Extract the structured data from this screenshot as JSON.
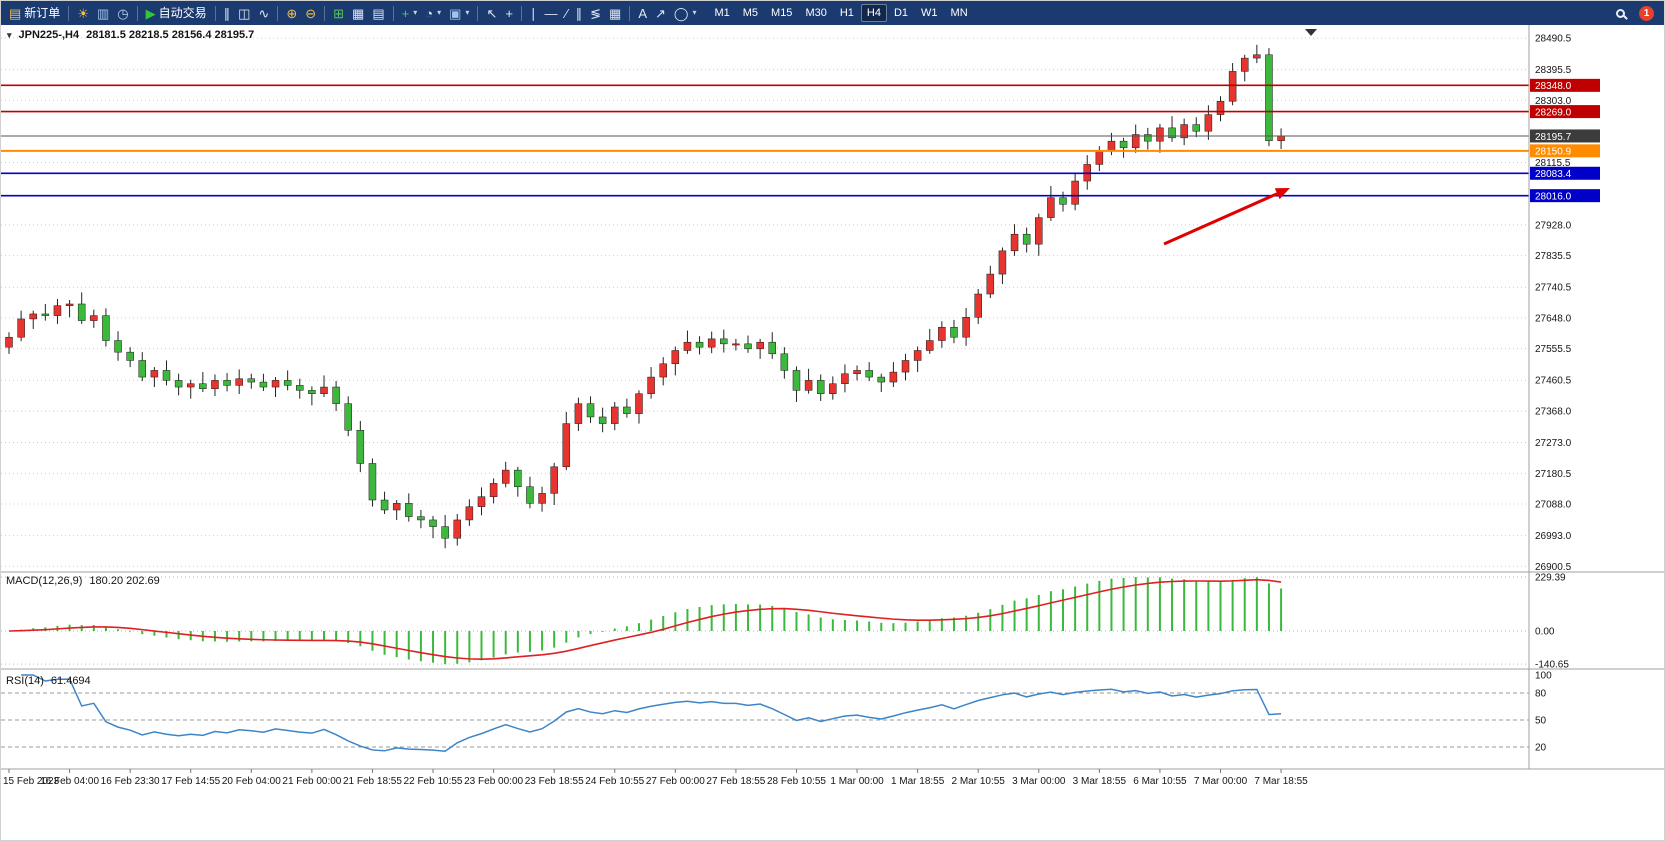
{
  "toolbar": {
    "background": "#1b3a70",
    "notification_count": "1",
    "timeframes": [
      "M1",
      "M5",
      "M15",
      "M30",
      "H1",
      "H4",
      "D1",
      "W1",
      "MN"
    ],
    "active_timeframe": "H4",
    "icon_groups": [
      {
        "items": [
          {
            "name": "new-order-button",
            "label": "新订单"
          }
        ]
      },
      {
        "items": [
          {
            "name": "indicators-icon"
          },
          {
            "name": "market-watch-icon"
          },
          {
            "name": "refresh-icon"
          }
        ]
      },
      {
        "items": [
          {
            "name": "auto-trading-button",
            "label": "自动交易"
          }
        ]
      },
      {
        "items": [
          {
            "name": "bar-chart-icon"
          },
          {
            "name": "candlestick-chart-icon"
          },
          {
            "name": "line-chart-icon"
          }
        ]
      },
      {
        "items": [
          {
            "name": "zoom-in-icon"
          },
          {
            "name": "zoom-out-icon"
          }
        ]
      },
      {
        "items": [
          {
            "name": "tile-windows-icon"
          },
          {
            "name": "cascade-windows-icon"
          },
          {
            "name": "arrange-windows-icon"
          }
        ]
      },
      {
        "items": [
          {
            "name": "new-chart-icon",
            "caret": true
          },
          {
            "name": "period-icon",
            "caret": true
          },
          {
            "name": "template-icon",
            "caret": true
          }
        ]
      },
      {
        "items": [
          {
            "name": "cursor-icon"
          },
          {
            "name": "crosshair-icon"
          }
        ]
      },
      {
        "items": [
          {
            "name": "vertical-line-icon"
          },
          {
            "name": "horizontal-line-icon"
          },
          {
            "name": "trendline-icon"
          },
          {
            "name": "channel-icon"
          },
          {
            "name": "fibonacci-icon"
          },
          {
            "name": "grid-icon"
          }
        ]
      },
      {
        "items": [
          {
            "name": "text-icon"
          },
          {
            "name": "arrow-marker-icon"
          },
          {
            "name": "shapes-icon",
            "caret": true
          }
        ]
      }
    ]
  },
  "chart": {
    "symbol_label": "JPN225-,H4",
    "ohlc_label": "28181.5 28218.5 28156.4 28195.7"
  },
  "chart_data": {
    "type": "candlestick",
    "symbol": "JPN225-",
    "timeframe": "H4",
    "ohlc_current": {
      "open": 28181.5,
      "high": 28218.5,
      "low": 28156.4,
      "close": 28195.7
    },
    "colors": {
      "bull": "#e8342e",
      "bear": "#3cb93c",
      "wick": "#222222",
      "grid": "#cccccc"
    },
    "price_axis": {
      "min": 26900.5,
      "max": 28490.5,
      "ticks": [
        "28490.5",
        "28395.5",
        "28303.0",
        "28115.5",
        "27928.0",
        "27835.5",
        "27740.5",
        "27648.0",
        "27555.5",
        "27460.5",
        "27368.0",
        "27273.0",
        "27180.5",
        "27088.0",
        "26993.0",
        "26900.5"
      ]
    },
    "levels": [
      {
        "name": "resistance-line-upper",
        "price": 28348.0,
        "label": "28348.0",
        "color": "#c00000",
        "badge": "#c00000",
        "width": 1.6
      },
      {
        "name": "resistance-line-lower",
        "price": 28269.0,
        "label": "28269.0",
        "color": "#c00000",
        "badge": "#c00000",
        "width": 1.6
      },
      {
        "name": "current-price-line",
        "price": 28195.7,
        "label": "28195.7",
        "color": "#555555",
        "badge": "#3c3c3c",
        "width": 1
      },
      {
        "name": "support-line-orange",
        "price": 28150.9,
        "label": "28150.9",
        "color": "#ff8c00",
        "badge": "#ff8c00",
        "width": 2
      },
      {
        "name": "support-line-blue-upper",
        "price": 28083.4,
        "label": "28083.4",
        "color": "#0000c8",
        "badge": "#0000c8",
        "width": 1.6
      },
      {
        "name": "support-line-blue-lower",
        "price": 28016.0,
        "label": "28016.0",
        "color": "#0000c8",
        "badge": "#0000c8",
        "width": 1.6
      }
    ],
    "annotation_arrow": {
      "from": [
        1163,
        243
      ],
      "to": [
        1289,
        187
      ],
      "color": "#e00000"
    },
    "time_labels": [
      "15 Feb 2023",
      "16 Feb 04:00",
      "16 Feb 23:30",
      "17 Feb 14:55",
      "20 Feb 04:00",
      "21 Feb 00:00",
      "21 Feb 18:55",
      "22 Feb 10:55",
      "23 Feb 00:00",
      "23 Feb 18:55",
      "24 Feb 10:55",
      "27 Feb 00:00",
      "27 Feb 18:55",
      "28 Feb 10:55",
      "1 Mar 00:00",
      "1 Mar 18:55",
      "2 Mar 10:55",
      "3 Mar 00:00",
      "3 Mar 18:55",
      "6 Mar 10:55",
      "7 Mar 00:00",
      "7 Mar 18:55"
    ],
    "candles": [
      [
        27560,
        27605,
        27540,
        27590
      ],
      [
        27590,
        27670,
        27578,
        27645
      ],
      [
        27645,
        27670,
        27615,
        27660
      ],
      [
        27660,
        27690,
        27640,
        27655
      ],
      [
        27655,
        27705,
        27630,
        27685
      ],
      [
        27685,
        27702,
        27650,
        27690
      ],
      [
        27690,
        27725,
        27630,
        27640
      ],
      [
        27640,
        27673,
        27618,
        27655
      ],
      [
        27655,
        27677,
        27562,
        27580
      ],
      [
        27580,
        27608,
        27519,
        27545
      ],
      [
        27545,
        27560,
        27500,
        27520
      ],
      [
        27520,
        27545,
        27458,
        27470
      ],
      [
        27470,
        27500,
        27440,
        27490
      ],
      [
        27490,
        27520,
        27445,
        27460
      ],
      [
        27460,
        27480,
        27415,
        27440
      ],
      [
        27440,
        27462,
        27405,
        27450
      ],
      [
        27450,
        27485,
        27425,
        27435
      ],
      [
        27435,
        27478,
        27413,
        27460
      ],
      [
        27460,
        27482,
        27427,
        27445
      ],
      [
        27445,
        27493,
        27419,
        27465
      ],
      [
        27465,
        27480,
        27435,
        27455
      ],
      [
        27455,
        27480,
        27428,
        27440
      ],
      [
        27440,
        27470,
        27410,
        27460
      ],
      [
        27460,
        27490,
        27430,
        27445
      ],
      [
        27445,
        27465,
        27405,
        27430
      ],
      [
        27430,
        27442,
        27385,
        27420
      ],
      [
        27420,
        27475,
        27410,
        27440
      ],
      [
        27440,
        27458,
        27368,
        27390
      ],
      [
        27390,
        27412,
        27292,
        27310
      ],
      [
        27310,
        27338,
        27184,
        27210
      ],
      [
        27210,
        27225,
        27080,
        27100
      ],
      [
        27100,
        27125,
        27058,
        27070
      ],
      [
        27070,
        27100,
        27040,
        27090
      ],
      [
        27090,
        27120,
        27035,
        27050
      ],
      [
        27050,
        27070,
        27015,
        27040
      ],
      [
        27040,
        27052,
        26985,
        27020
      ],
      [
        27020,
        27055,
        26955,
        26985
      ],
      [
        26985,
        27058,
        26963,
        27040
      ],
      [
        27040,
        27102,
        27022,
        27080
      ],
      [
        27080,
        27138,
        27054,
        27110
      ],
      [
        27110,
        27165,
        27090,
        27150
      ],
      [
        27150,
        27215,
        27138,
        27190
      ],
      [
        27190,
        27200,
        27110,
        27140
      ],
      [
        27140,
        27170,
        27075,
        27090
      ],
      [
        27090,
        27140,
        27065,
        27120
      ],
      [
        27120,
        27212,
        27085,
        27200
      ],
      [
        27200,
        27365,
        27190,
        27330
      ],
      [
        27330,
        27408,
        27308,
        27390
      ],
      [
        27390,
        27412,
        27332,
        27350
      ],
      [
        27350,
        27378,
        27304,
        27330
      ],
      [
        27330,
        27395,
        27310,
        27380
      ],
      [
        27380,
        27405,
        27348,
        27360
      ],
      [
        27360,
        27430,
        27330,
        27420
      ],
      [
        27420,
        27500,
        27405,
        27470
      ],
      [
        27470,
        27530,
        27445,
        27510
      ],
      [
        27510,
        27562,
        27475,
        27550
      ],
      [
        27550,
        27610,
        27540,
        27575
      ],
      [
        27575,
        27593,
        27538,
        27560
      ],
      [
        27560,
        27607,
        27542,
        27585
      ],
      [
        27585,
        27613,
        27544,
        27570
      ],
      [
        27570,
        27585,
        27550,
        27570
      ],
      [
        27570,
        27595,
        27543,
        27555
      ],
      [
        27555,
        27585,
        27525,
        27575
      ],
      [
        27575,
        27605,
        27525,
        27540
      ],
      [
        27540,
        27560,
        27465,
        27490
      ],
      [
        27490,
        27502,
        27395,
        27430
      ],
      [
        27430,
        27495,
        27420,
        27460
      ],
      [
        27460,
        27478,
        27398,
        27420
      ],
      [
        27420,
        27472,
        27402,
        27450
      ],
      [
        27450,
        27508,
        27424,
        27480
      ],
      [
        27480,
        27505,
        27460,
        27490
      ],
      [
        27490,
        27515,
        27458,
        27470
      ],
      [
        27470,
        27480,
        27425,
        27455
      ],
      [
        27455,
        27515,
        27440,
        27485
      ],
      [
        27485,
        27540,
        27460,
        27520
      ],
      [
        27520,
        27562,
        27485,
        27550
      ],
      [
        27550,
        27615,
        27540,
        27580
      ],
      [
        27580,
        27638,
        27558,
        27620
      ],
      [
        27620,
        27642,
        27572,
        27590
      ],
      [
        27590,
        27678,
        27564,
        27650
      ],
      [
        27650,
        27735,
        27630,
        27720
      ],
      [
        27720,
        27805,
        27708,
        27780
      ],
      [
        27780,
        27860,
        27750,
        27850
      ],
      [
        27850,
        27930,
        27835,
        27900
      ],
      [
        27900,
        27920,
        27845,
        27870
      ],
      [
        27870,
        27962,
        27835,
        27950
      ],
      [
        27950,
        28045,
        27940,
        28010
      ],
      [
        28010,
        28028,
        27968,
        27990
      ],
      [
        27990,
        28082,
        27972,
        28060
      ],
      [
        28060,
        28138,
        28034,
        28110
      ],
      [
        28110,
        28165,
        28090,
        28150
      ],
      [
        28150,
        28205,
        28138,
        28180
      ],
      [
        28180,
        28190,
        28130,
        28160
      ],
      [
        28160,
        28230,
        28145,
        28200
      ],
      [
        28200,
        28220,
        28155,
        28180
      ],
      [
        28180,
        28232,
        28145,
        28220
      ],
      [
        28220,
        28255,
        28178,
        28190
      ],
      [
        28190,
        28248,
        28168,
        28230
      ],
      [
        28230,
        28252,
        28192,
        28210
      ],
      [
        28210,
        28288,
        28184,
        28260
      ],
      [
        28260,
        28315,
        28240,
        28300
      ],
      [
        28300,
        28415,
        28288,
        28390
      ],
      [
        28390,
        28440,
        28360,
        28430
      ],
      [
        28430,
        28470,
        28415,
        28440
      ],
      [
        28440,
        28460,
        28165,
        28181.5
      ],
      [
        28181.5,
        28218.5,
        28156.4,
        28195.7
      ]
    ],
    "macd": {
      "label": "MACD(12,26,9)",
      "values_label": "180.20 202.69",
      "params": [
        12,
        26,
        9
      ],
      "axis_ticks": [
        "229.39",
        "0.00",
        "-140.65"
      ],
      "histogram_color": "#3cb93c",
      "signal_color": "#e02020"
    },
    "rsi": {
      "label": "RSI(14)",
      "value_label": "61.4694",
      "period": 14,
      "axis_ticks": [
        "100",
        "80",
        "50",
        "20"
      ],
      "levels": [
        80,
        50,
        20
      ],
      "line_color": "#3d85c8"
    }
  }
}
